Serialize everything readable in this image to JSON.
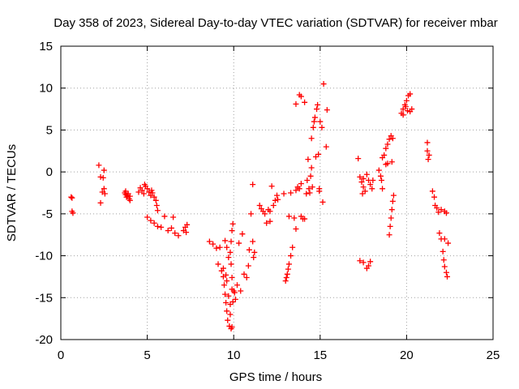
{
  "chart_data": {
    "type": "scatter",
    "title": "Day 358 of 2023, Sidereal Day-to-day VTEC variation (SDTVAR) for receiver mbar",
    "xlabel": "GPS time / hours",
    "ylabel": "SDTVAR / TECUs",
    "xlim": [
      0,
      25
    ],
    "ylim": [
      -20,
      15
    ],
    "xticks": [
      0,
      5,
      10,
      15,
      20,
      25
    ],
    "yticks": [
      -20,
      -15,
      -10,
      -5,
      0,
      5,
      10,
      15
    ],
    "grid": true,
    "marker": "plus",
    "color": "#ff0000",
    "series": [
      {
        "name": "SDTVAR",
        "points": [
          [
            0.6,
            -3.0
          ],
          [
            0.65,
            -4.7
          ],
          [
            0.7,
            -4.9
          ],
          [
            0.65,
            -3.1
          ],
          [
            2.2,
            0.8
          ],
          [
            2.3,
            -0.6
          ],
          [
            2.4,
            -2.4
          ],
          [
            2.5,
            0.2
          ],
          [
            2.45,
            -0.7
          ],
          [
            2.5,
            -2.0
          ],
          [
            2.55,
            -2.6
          ],
          [
            2.3,
            -3.7
          ],
          [
            3.7,
            -2.5
          ],
          [
            3.75,
            -2.7
          ],
          [
            3.8,
            -3.0
          ],
          [
            3.85,
            -2.8
          ],
          [
            3.9,
            -2.6
          ],
          [
            3.95,
            -3.2
          ],
          [
            4.0,
            -3.4
          ],
          [
            3.75,
            -2.3
          ],
          [
            4.0,
            -2.9
          ],
          [
            4.5,
            -2.4
          ],
          [
            4.6,
            -1.9
          ],
          [
            4.7,
            -2.2
          ],
          [
            4.8,
            -2.6
          ],
          [
            4.9,
            -1.7
          ],
          [
            5.0,
            -2.0
          ],
          [
            5.1,
            -2.4
          ],
          [
            5.2,
            -2.8
          ],
          [
            5.3,
            -2.5
          ],
          [
            5.4,
            -3.0
          ],
          [
            5.5,
            -3.4
          ],
          [
            5.55,
            -4.0
          ],
          [
            5.6,
            -4.6
          ],
          [
            4.85,
            -1.5
          ],
          [
            5.25,
            -2.2
          ],
          [
            5.0,
            -5.4
          ],
          [
            5.2,
            -5.8
          ],
          [
            5.4,
            -6.1
          ],
          [
            5.6,
            -6.5
          ],
          [
            5.8,
            -6.6
          ],
          [
            6.0,
            -5.3
          ],
          [
            6.2,
            -7.0
          ],
          [
            6.4,
            -6.7
          ],
          [
            6.5,
            -5.4
          ],
          [
            6.6,
            -7.3
          ],
          [
            6.8,
            -7.6
          ],
          [
            7.1,
            -7.0
          ],
          [
            7.2,
            -6.6
          ],
          [
            7.3,
            -6.3
          ],
          [
            7.25,
            -7.2
          ],
          [
            8.6,
            -8.3
          ],
          [
            8.8,
            -8.6
          ],
          [
            9.0,
            -9.1
          ],
          [
            9.1,
            -11.0
          ],
          [
            9.2,
            -9.0
          ],
          [
            9.3,
            -11.8
          ],
          [
            9.4,
            -12.5
          ],
          [
            9.45,
            -13.5
          ],
          [
            9.5,
            -14.6
          ],
          [
            9.55,
            -15.6
          ],
          [
            9.6,
            -16.6
          ],
          [
            9.65,
            -17.7
          ],
          [
            9.75,
            -18.4
          ],
          [
            9.85,
            -18.7
          ],
          [
            9.9,
            -18.5
          ],
          [
            9.95,
            -15.5
          ],
          [
            10.0,
            -14.2
          ],
          [
            9.9,
            -12.6
          ],
          [
            9.85,
            -11.0
          ],
          [
            9.8,
            -9.6
          ],
          [
            9.85,
            -8.3
          ],
          [
            9.9,
            -7.0
          ],
          [
            9.95,
            -6.2
          ],
          [
            9.5,
            -8.2
          ],
          [
            9.6,
            -9.0
          ],
          [
            9.7,
            -10.2
          ],
          [
            9.6,
            -13.0
          ],
          [
            9.7,
            -14.8
          ],
          [
            9.8,
            -15.8
          ],
          [
            9.9,
            -14.0
          ],
          [
            10.05,
            -14.4
          ],
          [
            9.4,
            -11.5
          ],
          [
            9.55,
            -12.3
          ],
          [
            9.8,
            -17.0
          ],
          [
            10.1,
            -15.2
          ],
          [
            10.2,
            -13.5
          ],
          [
            10.3,
            -8.5
          ],
          [
            10.4,
            -14.2
          ],
          [
            10.5,
            -7.4
          ],
          [
            10.6,
            -12.2
          ],
          [
            10.75,
            -12.6
          ],
          [
            10.9,
            -9.3
          ],
          [
            10.85,
            -11.2
          ],
          [
            11.0,
            -5.0
          ],
          [
            11.1,
            -8.3
          ],
          [
            11.2,
            -9.6
          ],
          [
            11.15,
            -10.2
          ],
          [
            11.1,
            -1.5
          ],
          [
            11.5,
            -4.0
          ],
          [
            11.6,
            -4.4
          ],
          [
            11.7,
            -4.7
          ],
          [
            11.8,
            -5.0
          ],
          [
            11.9,
            -6.1
          ],
          [
            12.0,
            -4.5
          ],
          [
            12.1,
            -4.7
          ],
          [
            12.2,
            -1.7
          ],
          [
            12.3,
            -4.0
          ],
          [
            12.1,
            -5.9
          ],
          [
            12.5,
            -2.8
          ],
          [
            12.4,
            -3.4
          ],
          [
            12.55,
            -3.3
          ],
          [
            12.9,
            -2.6
          ],
          [
            13.0,
            -13.0
          ],
          [
            13.1,
            -12.2
          ],
          [
            13.2,
            -11.0
          ],
          [
            13.3,
            -10.0
          ],
          [
            13.4,
            -9.0
          ],
          [
            13.2,
            -5.3
          ],
          [
            13.3,
            -2.5
          ],
          [
            13.5,
            -5.5
          ],
          [
            13.6,
            -2.2
          ],
          [
            13.7,
            -1.8
          ],
          [
            13.8,
            -2.0
          ],
          [
            13.9,
            -5.3
          ],
          [
            13.9,
            -1.4
          ],
          [
            14.0,
            -5.6
          ],
          [
            13.6,
            -6.8
          ],
          [
            13.05,
            -12.6
          ],
          [
            13.15,
            -11.6
          ],
          [
            13.6,
            8.1
          ],
          [
            13.8,
            9.2
          ],
          [
            13.9,
            9.0
          ],
          [
            14.1,
            8.3
          ],
          [
            14.2,
            -2.6
          ],
          [
            14.25,
            -1.0
          ],
          [
            14.3,
            1.5
          ],
          [
            14.35,
            -2.0
          ],
          [
            14.4,
            -2.5
          ],
          [
            14.5,
            0.5
          ],
          [
            14.5,
            4.0
          ],
          [
            14.6,
            5.3
          ],
          [
            14.65,
            6.0
          ],
          [
            14.7,
            6.5
          ],
          [
            14.8,
            7.5
          ],
          [
            14.85,
            8.0
          ],
          [
            14.75,
            1.8
          ],
          [
            14.9,
            2.1
          ],
          [
            14.95,
            -2.0
          ],
          [
            15.0,
            6.0
          ],
          [
            15.1,
            5.3
          ],
          [
            15.2,
            10.5
          ],
          [
            15.15,
            -3.6
          ],
          [
            15.4,
            7.4
          ],
          [
            15.35,
            3.0
          ],
          [
            14.55,
            -1.8
          ],
          [
            14.95,
            -2.3
          ],
          [
            14.1,
            -5.6
          ],
          [
            14.45,
            -0.5
          ],
          [
            17.2,
            1.6
          ],
          [
            17.3,
            -0.6
          ],
          [
            17.4,
            -1.2
          ],
          [
            17.5,
            -1.8
          ],
          [
            17.6,
            -2.3
          ],
          [
            17.7,
            -0.3
          ],
          [
            17.8,
            -1.0
          ],
          [
            17.9,
            -1.5
          ],
          [
            18.0,
            -2.0
          ],
          [
            18.05,
            -1.0
          ],
          [
            17.45,
            -2.6
          ],
          [
            17.5,
            -0.8
          ],
          [
            17.3,
            -10.6
          ],
          [
            17.5,
            -10.8
          ],
          [
            17.7,
            -11.5
          ],
          [
            17.8,
            -11.2
          ],
          [
            17.9,
            -10.7
          ],
          [
            18.4,
            0.2
          ],
          [
            18.5,
            -0.5
          ],
          [
            18.55,
            -1.0
          ],
          [
            18.6,
            -2.0
          ],
          [
            18.6,
            1.7
          ],
          [
            18.7,
            2.0
          ],
          [
            18.8,
            2.8
          ],
          [
            18.9,
            3.3
          ],
          [
            19.0,
            3.9
          ],
          [
            19.1,
            4.3
          ],
          [
            19.2,
            4.0
          ],
          [
            18.8,
            0.9
          ],
          [
            18.9,
            1.0
          ],
          [
            19.0,
            -7.5
          ],
          [
            19.05,
            -6.5
          ],
          [
            19.1,
            -5.5
          ],
          [
            19.15,
            -4.5
          ],
          [
            19.2,
            -3.5
          ],
          [
            19.25,
            -2.8
          ],
          [
            19.15,
            1.2
          ],
          [
            19.7,
            7.0
          ],
          [
            19.8,
            7.5
          ],
          [
            19.9,
            8.0
          ],
          [
            20.0,
            8.5
          ],
          [
            20.1,
            9.1
          ],
          [
            20.2,
            9.3
          ],
          [
            20.3,
            7.5
          ],
          [
            20.2,
            7.2
          ],
          [
            19.8,
            6.8
          ],
          [
            19.95,
            7.8
          ],
          [
            20.05,
            7.3
          ],
          [
            21.2,
            2.5
          ],
          [
            21.25,
            1.5
          ],
          [
            21.3,
            2.0
          ],
          [
            21.2,
            3.5
          ],
          [
            21.5,
            -2.3
          ],
          [
            21.6,
            -3.0
          ],
          [
            21.65,
            -4.0
          ],
          [
            21.75,
            -4.3
          ],
          [
            21.85,
            -4.8
          ],
          [
            22.0,
            -4.5
          ],
          [
            22.2,
            -4.7
          ],
          [
            22.3,
            -4.9
          ],
          [
            21.9,
            -7.3
          ],
          [
            22.0,
            -8.0
          ],
          [
            22.1,
            -9.5
          ],
          [
            22.15,
            -10.5
          ],
          [
            22.2,
            -11.3
          ],
          [
            22.3,
            -12.0
          ],
          [
            22.35,
            -12.5
          ],
          [
            22.4,
            -8.5
          ],
          [
            22.2,
            -8.0
          ]
        ]
      }
    ]
  }
}
